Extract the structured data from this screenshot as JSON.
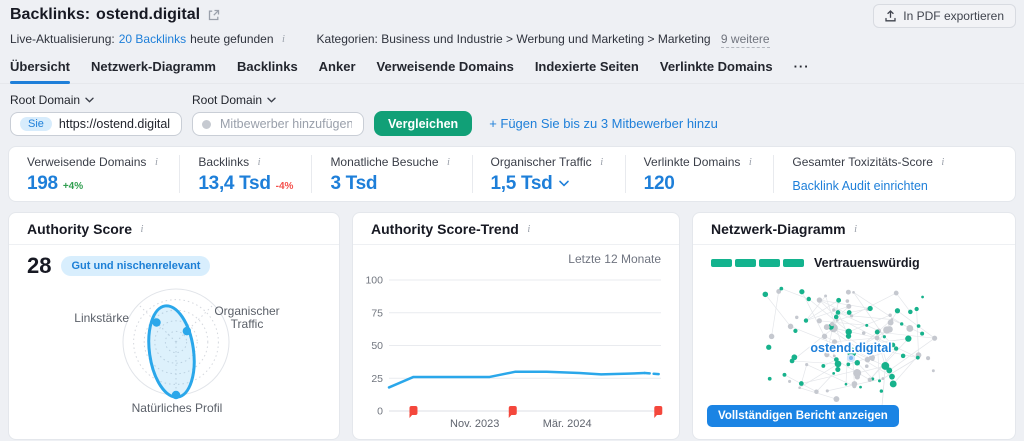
{
  "header": {
    "title_prefix": "Backlinks:",
    "domain": "ostend.digital",
    "export_button": "In PDF exportieren",
    "live_label": "Live-Aktualisierung:",
    "live_link": "20 Backlinks",
    "live_suffix": "heute gefunden",
    "categories_label": "Kategorien:",
    "categories_path": "Business und Industrie > Werbung und Marketing > Marketing",
    "categories_more": "9 weitere"
  },
  "tabs": {
    "items": [
      "Übersicht",
      "Netzwerk-Diagramm",
      "Backlinks",
      "Anker",
      "Verweisende Domains",
      "Indexierte Seiten",
      "Verlinkte Domains"
    ],
    "active_index": 0,
    "more_label": "···"
  },
  "filters": {
    "root_domain_label_you": "Root Domain",
    "root_domain_label_competitor": "Root Domain",
    "you_badge": "Sie",
    "you_value": "https://ostend.digital",
    "competitor_placeholder": "Mitbewerber hinzufügen",
    "compare_button": "Vergleichen",
    "add_competitors_link": "+ Fügen Sie bis zu 3 Mitbewerber hinzu"
  },
  "metrics": {
    "items": [
      {
        "label": "Verweisende Domains",
        "value": "198",
        "delta": "+4%",
        "delta_dir": "up"
      },
      {
        "label": "Backlinks",
        "value": "13,4 Tsd",
        "delta": "-4%",
        "delta_dir": "down"
      },
      {
        "label": "Monatliche Besuche",
        "value": "3 Tsd"
      },
      {
        "label": "Organischer Traffic",
        "value": "1,5 Tsd",
        "chevron": true
      },
      {
        "label": "Verlinkte Domains",
        "value": "120"
      },
      {
        "label": "Gesamter Toxizitäts-Score",
        "link": "Backlink Audit einrichten"
      }
    ]
  },
  "cards": {
    "authority": {
      "title": "Authority Score",
      "score": "28",
      "badge": "Gut und nischenrelevant"
    },
    "trend": {
      "title": "Authority Score-Trend",
      "period": "Letzte 12 Monate"
    },
    "network": {
      "title": "Netzwerk-Diagramm",
      "rating_label": "Vertrauenswürdig",
      "rating_segments": 4,
      "center_label": "ostend.digital",
      "button_label": "Vollständigen Bericht anzeigen"
    }
  },
  "chart_data": [
    {
      "id": "authority-radar",
      "type": "radar",
      "axes": [
        "Linkstärke",
        "Organischer Traffic",
        "Natürliches Profil"
      ],
      "values_pct": [
        52,
        29,
        100
      ],
      "max_pct": 100,
      "color": "#2aa7ea",
      "fill": "rgba(42,167,234,0.16)",
      "ellipse": {
        "dx": -4.5,
        "dy": 9.5,
        "rx": 22,
        "ry": 46,
        "rotate": -8
      }
    },
    {
      "id": "authority-score-trend",
      "type": "line",
      "x_ticks": [
        {
          "label": "Nov. 2023",
          "frac": 0.315
        },
        {
          "label": "Mär. 2024",
          "frac": 0.655
        }
      ],
      "y_ticks": [
        0,
        25,
        50,
        75,
        100
      ],
      "ylim": [
        0,
        100
      ],
      "points": [
        [
          0,
          18
        ],
        [
          0.09,
          26
        ],
        [
          0.2,
          26
        ],
        [
          0.37,
          26
        ],
        [
          0.465,
          30
        ],
        [
          0.58,
          30
        ],
        [
          0.7,
          29
        ],
        [
          0.78,
          28
        ],
        [
          0.88,
          28.5
        ],
        [
          0.94,
          29
        ]
      ],
      "dashed_tail": [
        [
          0.94,
          29
        ],
        [
          1.0,
          28
        ]
      ],
      "line_color": "#2aa7ea",
      "note_markers": [
        0.09,
        0.455,
        0.99
      ],
      "note_color": "#f4473c",
      "grid": true
    },
    {
      "id": "network-graph",
      "type": "scatter-network",
      "node_count": 115,
      "edge_attempts": 170,
      "green_ratio": 0.55,
      "node_green": "#17b28c",
      "node_grey": "#c5c8cf",
      "edge_color": "#e4e6ea",
      "center_label": "ostend.digital",
      "label_color": "#1e7fd9",
      "seed": 11
    }
  ],
  "colors": {
    "accent_blue": "#1e7fd9",
    "chart_blue": "#2aa7ea",
    "button_green": "#11a077",
    "node_green": "#17b28c",
    "note_red": "#f4473c",
    "badge_bg": "#d8eefd",
    "page_bg": "#eef0f4"
  }
}
